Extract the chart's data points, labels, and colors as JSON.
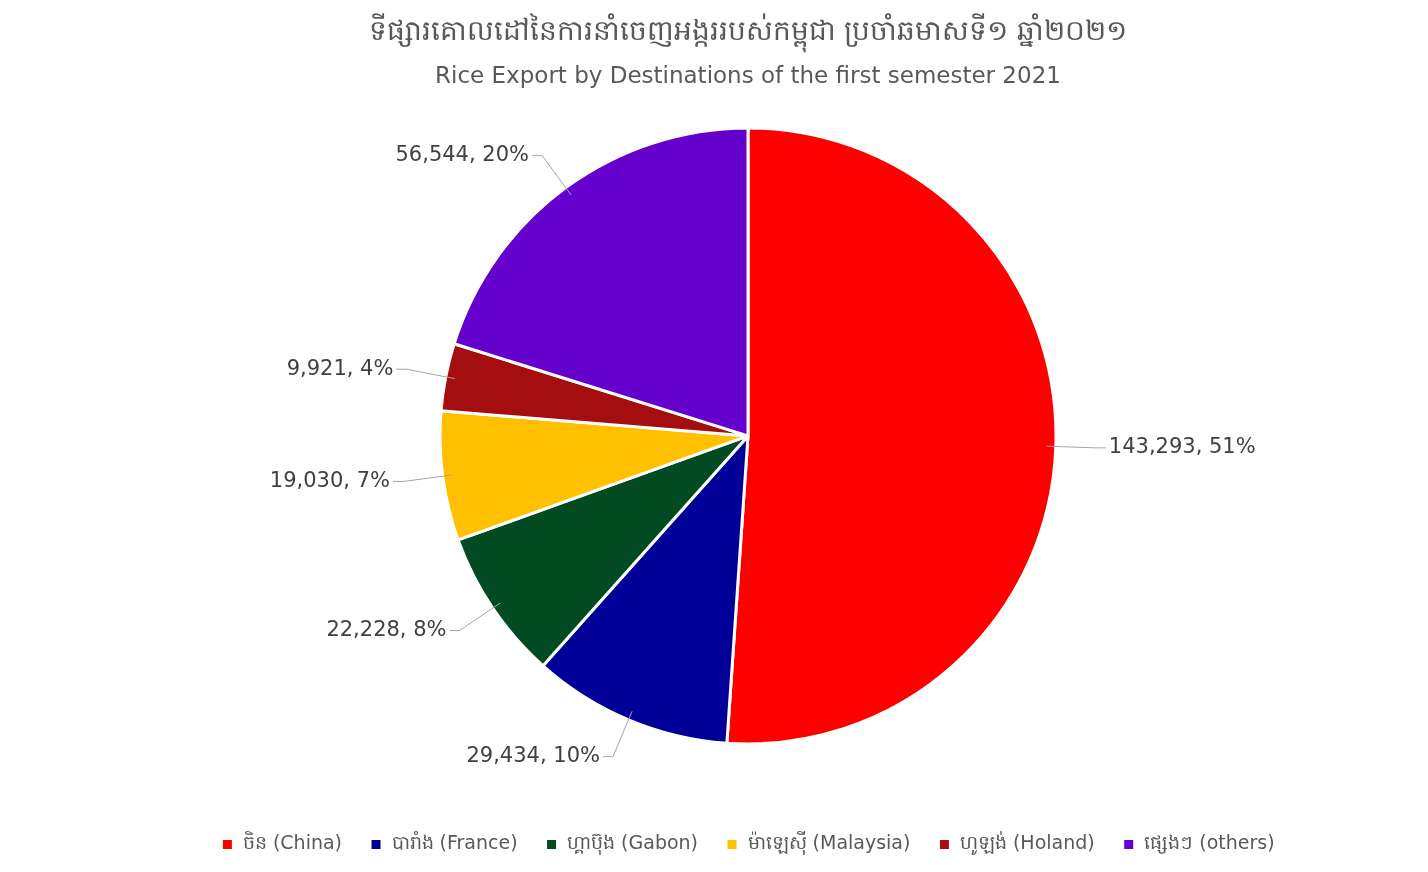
{
  "chart_data": {
    "type": "pie",
    "title": "ទីផ្សារគោលដៅនៃការនាំចេញអង្កររបស់កម្ពុជា ប្រចាំឆមាសទី១ ឆ្នាំ២០២១",
    "subtitle": "Rice Export by Destinations of the first semester 2021",
    "categories": [
      "ចិន (China)",
      "បារាំង (France)",
      "ហ្គាប៊ុង (Gabon)",
      "ម៉ាឡេស៊ី (Malaysia)",
      "ហូឡង់ (Holand)",
      "ផ្សេងៗ (others)"
    ],
    "values": [
      143293,
      29434,
      22228,
      19030,
      9921,
      56544
    ],
    "colors": [
      "#ff0000",
      "#000099",
      "#014a22",
      "#ffc000",
      "#a50e0e",
      "#6600cc"
    ],
    "value_labels": [
      "143,293, 51%",
      "29,434, 10%",
      "22,228, 8%",
      "19,030, 7%",
      "9,921, 4%",
      "56,544, 20%"
    ],
    "legend": "bottom"
  }
}
